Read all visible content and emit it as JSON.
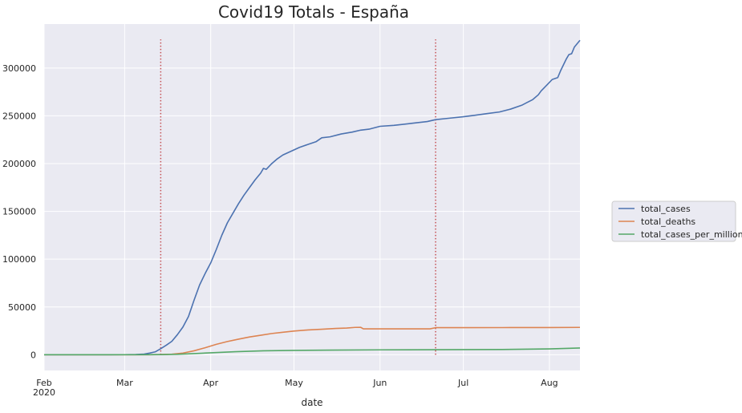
{
  "chart_data": {
    "type": "line",
    "title": "Covid19  Totals - España",
    "xlabel": "date",
    "ylabel": "",
    "x_ticks": [
      {
        "date": "2020-02-01",
        "label": "Feb",
        "sublabel": "2020"
      },
      {
        "date": "2020-03-01",
        "label": "Mar",
        "sublabel": ""
      },
      {
        "date": "2020-04-01",
        "label": "Apr",
        "sublabel": ""
      },
      {
        "date": "2020-05-01",
        "label": "May",
        "sublabel": ""
      },
      {
        "date": "2020-06-01",
        "label": "Jun",
        "sublabel": ""
      },
      {
        "date": "2020-07-01",
        "label": "Jul",
        "sublabel": ""
      },
      {
        "date": "2020-08-01",
        "label": "Aug",
        "sublabel": ""
      }
    ],
    "y_ticks": [
      0,
      50000,
      100000,
      150000,
      200000,
      250000,
      300000
    ],
    "xlim": [
      "2020-02-01",
      "2020-08-12"
    ],
    "ylim": [
      -16500,
      346000
    ],
    "grid": true,
    "legend_position": "outside-right",
    "vlines": [
      {
        "date": "2020-03-14",
        "ymin": 0,
        "ymax": 330000,
        "color": "#c44e52",
        "style": "dotted"
      },
      {
        "date": "2020-06-21",
        "ymin": 0,
        "ymax": 330000,
        "color": "#c44e52",
        "style": "dotted"
      }
    ],
    "series": [
      {
        "name": "total_cases",
        "color": "#4c72b0",
        "points": [
          [
            "2020-02-01",
            1
          ],
          [
            "2020-02-10",
            2
          ],
          [
            "2020-02-25",
            5
          ],
          [
            "2020-03-01",
            84
          ],
          [
            "2020-03-05",
            260
          ],
          [
            "2020-03-08",
            670
          ],
          [
            "2020-03-10",
            1700
          ],
          [
            "2020-03-12",
            3000
          ],
          [
            "2020-03-14",
            6300
          ],
          [
            "2020-03-16",
            10000
          ],
          [
            "2020-03-18",
            14000
          ],
          [
            "2020-03-20",
            21000
          ],
          [
            "2020-03-22",
            29000
          ],
          [
            "2020-03-24",
            40000
          ],
          [
            "2020-03-26",
            57000
          ],
          [
            "2020-03-28",
            73000
          ],
          [
            "2020-03-30",
            85000
          ],
          [
            "2020-04-01",
            96000
          ],
          [
            "2020-04-03",
            110000
          ],
          [
            "2020-04-05",
            125000
          ],
          [
            "2020-04-07",
            138000
          ],
          [
            "2020-04-09",
            148000
          ],
          [
            "2020-04-11",
            158000
          ],
          [
            "2020-04-13",
            167000
          ],
          [
            "2020-04-15",
            175000
          ],
          [
            "2020-04-17",
            183000
          ],
          [
            "2020-04-19",
            190000
          ],
          [
            "2020-04-20",
            195000
          ],
          [
            "2020-04-21",
            194000
          ],
          [
            "2020-04-23",
            200000
          ],
          [
            "2020-04-25",
            205000
          ],
          [
            "2020-04-27",
            209000
          ],
          [
            "2020-04-30",
            213000
          ],
          [
            "2020-05-03",
            217000
          ],
          [
            "2020-05-06",
            220000
          ],
          [
            "2020-05-09",
            223000
          ],
          [
            "2020-05-11",
            227000
          ],
          [
            "2020-05-14",
            228000
          ],
          [
            "2020-05-18",
            231000
          ],
          [
            "2020-05-22",
            233000
          ],
          [
            "2020-05-25",
            235000
          ],
          [
            "2020-05-28",
            236000
          ],
          [
            "2020-06-01",
            239000
          ],
          [
            "2020-06-06",
            240000
          ],
          [
            "2020-06-12",
            242000
          ],
          [
            "2020-06-18",
            244000
          ],
          [
            "2020-06-21",
            246000
          ],
          [
            "2020-06-26",
            247500
          ],
          [
            "2020-07-01",
            249000
          ],
          [
            "2020-07-05",
            250500
          ],
          [
            "2020-07-10",
            252500
          ],
          [
            "2020-07-14",
            254000
          ],
          [
            "2020-07-18",
            257000
          ],
          [
            "2020-07-22",
            261000
          ],
          [
            "2020-07-24",
            264000
          ],
          [
            "2020-07-26",
            267000
          ],
          [
            "2020-07-28",
            272000
          ],
          [
            "2020-07-29",
            276000
          ],
          [
            "2020-07-31",
            282000
          ],
          [
            "2020-08-02",
            288000
          ],
          [
            "2020-08-04",
            290000
          ],
          [
            "2020-08-05",
            297000
          ],
          [
            "2020-08-06",
            303000
          ],
          [
            "2020-08-07",
            309000
          ],
          [
            "2020-08-08",
            314000
          ],
          [
            "2020-08-09",
            315000
          ],
          [
            "2020-08-10",
            322000
          ],
          [
            "2020-08-12",
            329000
          ]
        ]
      },
      {
        "name": "total_deaths",
        "color": "#dd8452",
        "points": [
          [
            "2020-02-01",
            0
          ],
          [
            "2020-03-03",
            0
          ],
          [
            "2020-03-10",
            35
          ],
          [
            "2020-03-14",
            190
          ],
          [
            "2020-03-18",
            600
          ],
          [
            "2020-03-22",
            1750
          ],
          [
            "2020-03-26",
            4100
          ],
          [
            "2020-03-30",
            7300
          ],
          [
            "2020-04-03",
            10900
          ],
          [
            "2020-04-07",
            13800
          ],
          [
            "2020-04-11",
            16300
          ],
          [
            "2020-04-15",
            18600
          ],
          [
            "2020-04-19",
            20400
          ],
          [
            "2020-04-23",
            22200
          ],
          [
            "2020-04-27",
            23500
          ],
          [
            "2020-05-01",
            24800
          ],
          [
            "2020-05-06",
            25900
          ],
          [
            "2020-05-11",
            26700
          ],
          [
            "2020-05-16",
            27500
          ],
          [
            "2020-05-20",
            27900
          ],
          [
            "2020-05-23",
            28600
          ],
          [
            "2020-05-25",
            28700
          ],
          [
            "2020-05-26",
            27100
          ],
          [
            "2020-06-01",
            27100
          ],
          [
            "2020-06-10",
            27100
          ],
          [
            "2020-06-19",
            27100
          ],
          [
            "2020-06-21",
            28300
          ],
          [
            "2020-07-01",
            28350
          ],
          [
            "2020-07-15",
            28400
          ],
          [
            "2020-08-01",
            28450
          ],
          [
            "2020-08-12",
            28600
          ]
        ]
      },
      {
        "name": "total_cases_per_million",
        "color": "#55a868",
        "points": [
          [
            "2020-02-01",
            0
          ],
          [
            "2020-03-05",
            5
          ],
          [
            "2020-03-14",
            135
          ],
          [
            "2020-03-20",
            450
          ],
          [
            "2020-03-26",
            1200
          ],
          [
            "2020-04-01",
            2050
          ],
          [
            "2020-04-10",
            3200
          ],
          [
            "2020-04-20",
            4100
          ],
          [
            "2020-05-01",
            4550
          ],
          [
            "2020-05-15",
            4880
          ],
          [
            "2020-06-01",
            5110
          ],
          [
            "2020-06-21",
            5250
          ],
          [
            "2020-07-01",
            5330
          ],
          [
            "2020-07-15",
            5450
          ],
          [
            "2020-08-01",
            6100
          ],
          [
            "2020-08-12",
            7030
          ]
        ]
      }
    ]
  }
}
